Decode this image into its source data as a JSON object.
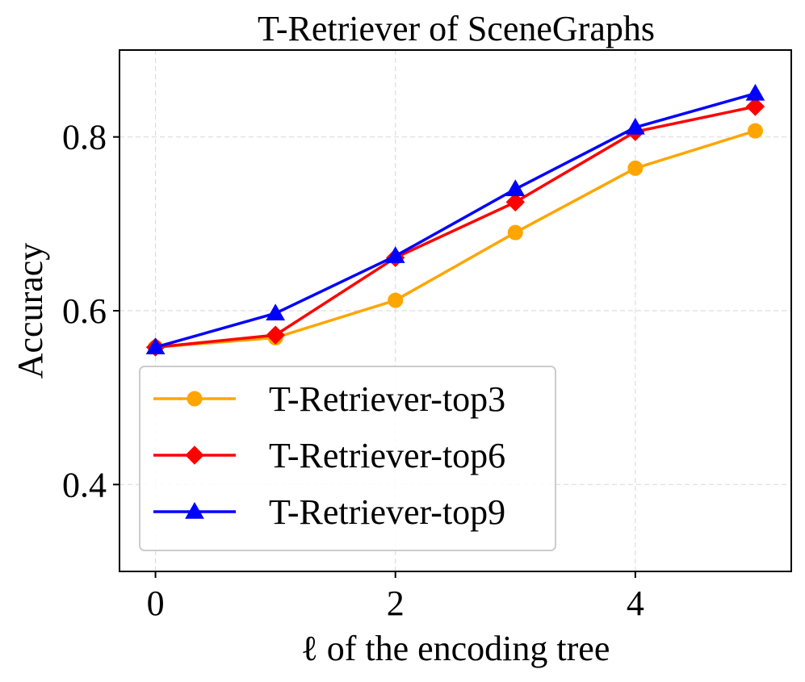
{
  "chart_data": {
    "type": "line",
    "title": "T-Retriever of SceneGraphs",
    "xlabel": "ℓ of the encoding tree",
    "ylabel": "Accuracy",
    "x": [
      0,
      1,
      2,
      3,
      4,
      5
    ],
    "xlim": [
      -0.3,
      5.3
    ],
    "ylim": [
      0.3,
      0.9
    ],
    "xticks": [
      0,
      2,
      4
    ],
    "yticks": [
      0.4,
      0.6,
      0.8
    ],
    "xtick_labels": [
      "0",
      "2",
      "4"
    ],
    "ytick_labels": [
      "0.4",
      "0.6",
      "0.8"
    ],
    "grid": true,
    "legend_position": "lower-left",
    "series": [
      {
        "name": "T-Retriever-top3",
        "color": "#FFA500",
        "marker": "circle",
        "values": [
          0.558,
          0.569,
          0.612,
          0.69,
          0.764,
          0.807
        ]
      },
      {
        "name": "T-Retriever-top6",
        "color": "#FF0000",
        "marker": "diamond",
        "values": [
          0.558,
          0.572,
          0.661,
          0.725,
          0.806,
          0.835
        ]
      },
      {
        "name": "T-Retriever-top9",
        "color": "#0000FF",
        "marker": "triangle",
        "values": [
          0.558,
          0.597,
          0.663,
          0.74,
          0.811,
          0.85
        ]
      }
    ]
  }
}
